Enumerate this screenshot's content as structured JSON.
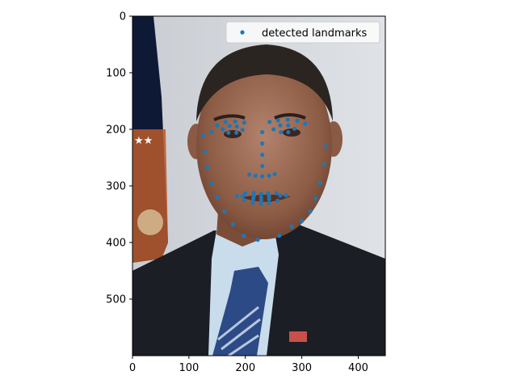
{
  "chart_data": {
    "type": "scatter",
    "title": "",
    "xlabel": "",
    "ylabel": "",
    "xlim": [
      0,
      448
    ],
    "ylim": [
      600,
      0
    ],
    "y_inverted": true,
    "grid": false,
    "background": "photograph: portrait of a man in a dark suit, light blue shirt and striped blue tie, flag on the left, grey backdrop",
    "x_ticks": [
      0,
      100,
      200,
      300,
      400
    ],
    "y_ticks": [
      0,
      100,
      200,
      300,
      400,
      500
    ],
    "legend": {
      "placement": "top-right",
      "entries": [
        "detected landmarks"
      ]
    },
    "series": [
      {
        "name": "detected landmarks",
        "color": "#1f77b4",
        "marker": "circle",
        "points": [
          [
            125,
            210
          ],
          [
            128,
            240
          ],
          [
            133,
            267
          ],
          [
            140,
            295
          ],
          [
            150,
            320
          ],
          [
            163,
            345
          ],
          [
            178,
            368
          ],
          [
            197,
            388
          ],
          [
            222,
            395
          ],
          [
            260,
            388
          ],
          [
            282,
            372
          ],
          [
            300,
            362
          ],
          [
            315,
            345
          ],
          [
            325,
            322
          ],
          [
            332,
            295
          ],
          [
            340,
            262
          ],
          [
            343,
            230
          ],
          [
            140,
            205
          ],
          [
            150,
            193
          ],
          [
            165,
            187
          ],
          [
            182,
            186
          ],
          [
            198,
            188
          ],
          [
            243,
            187
          ],
          [
            258,
            184
          ],
          [
            275,
            183
          ],
          [
            292,
            185
          ],
          [
            306,
            190
          ],
          [
            230,
            205
          ],
          [
            230,
            225
          ],
          [
            230,
            245
          ],
          [
            230,
            265
          ],
          [
            207,
            280
          ],
          [
            218,
            282
          ],
          [
            230,
            283
          ],
          [
            242,
            282
          ],
          [
            252,
            279
          ],
          [
            160,
            200
          ],
          [
            172,
            194
          ],
          [
            185,
            195
          ],
          [
            195,
            201
          ],
          [
            184,
            206
          ],
          [
            170,
            206
          ],
          [
            250,
            200
          ],
          [
            262,
            193
          ],
          [
            276,
            193
          ],
          [
            287,
            199
          ],
          [
            276,
            205
          ],
          [
            263,
            205
          ],
          [
            185,
            318
          ],
          [
            200,
            313
          ],
          [
            215,
            312
          ],
          [
            228,
            314
          ],
          [
            240,
            313
          ],
          [
            255,
            313
          ],
          [
            272,
            317
          ],
          [
            257,
            326
          ],
          [
            242,
            330
          ],
          [
            228,
            332
          ],
          [
            213,
            330
          ],
          [
            198,
            325
          ],
          [
            195,
            318
          ],
          [
            215,
            318
          ],
          [
            228,
            320
          ],
          [
            242,
            318
          ],
          [
            262,
            317
          ],
          [
            242,
            323
          ],
          [
            228,
            325
          ],
          [
            214,
            323
          ]
        ]
      }
    ]
  }
}
